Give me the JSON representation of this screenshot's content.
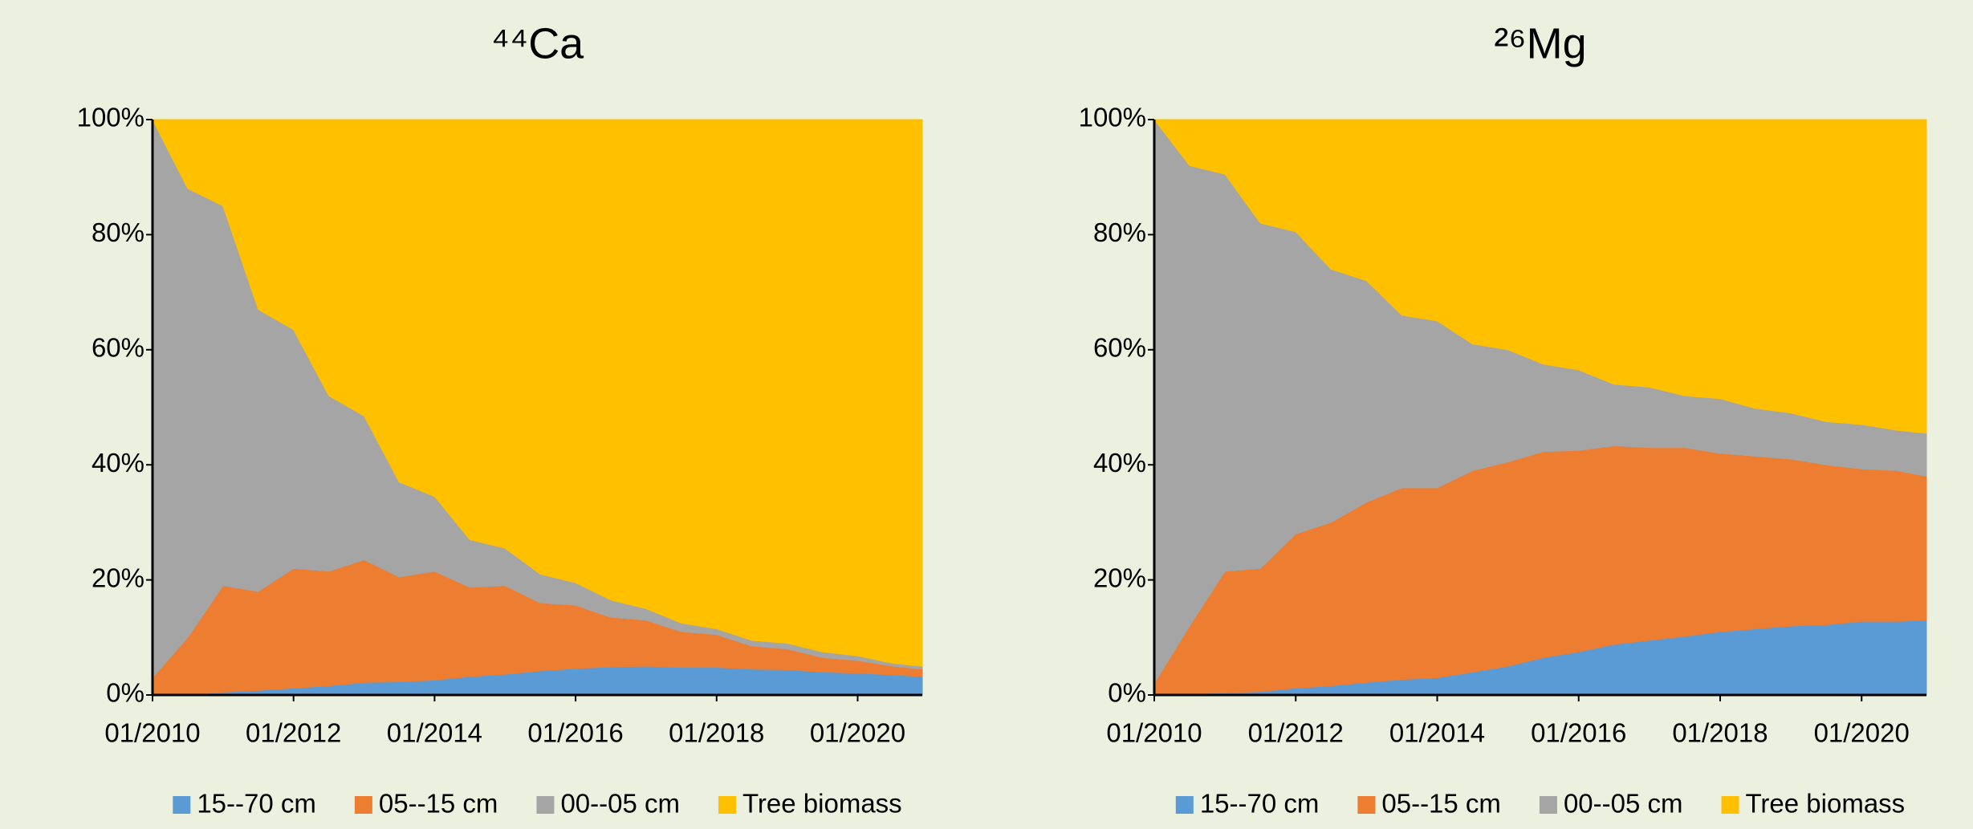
{
  "chart_data": [
    {
      "type": "area",
      "stacked": true,
      "title": "⁴⁴Ca",
      "x": [
        "01/2010",
        "07/2010",
        "01/2011",
        "07/2011",
        "01/2012",
        "07/2012",
        "01/2013",
        "07/2013",
        "01/2014",
        "07/2014",
        "01/2015",
        "07/2015",
        "01/2016",
        "07/2016",
        "01/2017",
        "07/2017",
        "01/2018",
        "07/2018",
        "01/2019",
        "07/2019",
        "01/2020",
        "07/2020",
        "12/2020"
      ],
      "xlim": [
        "01/2010",
        "12/2020"
      ],
      "xticks": [
        "01/2010",
        "01/2012",
        "01/2014",
        "01/2016",
        "01/2018",
        "01/2020"
      ],
      "ylim": [
        0,
        100
      ],
      "yticks": [
        {
          "value": 0,
          "label": "0%"
        },
        {
          "value": 20,
          "label": "20%"
        },
        {
          "value": 40,
          "label": "40%"
        },
        {
          "value": 60,
          "label": "60%"
        },
        {
          "value": 80,
          "label": "80%"
        },
        {
          "value": 100,
          "label": "100%"
        }
      ],
      "legend": "bottom",
      "series": [
        {
          "name": "15--70 cm",
          "color": "#5b9bd5",
          "values": [
            0,
            0,
            0.5,
            0.8,
            1.2,
            1.6,
            2.2,
            2.3,
            2.6,
            3.2,
            3.6,
            4.2,
            4.6,
            4.9,
            5.0,
            4.8,
            4.8,
            4.5,
            4.4,
            4.0,
            3.8,
            3.5,
            3.2
          ]
        },
        {
          "name": "05--15 cm",
          "color": "#ed7d31",
          "values": [
            3,
            10,
            18.5,
            17.2,
            20.8,
            19.9,
            21.3,
            18.2,
            18.9,
            15.5,
            15.4,
            11.8,
            11.0,
            8.6,
            8.0,
            6.2,
            5.7,
            4.0,
            3.6,
            2.5,
            2.2,
            1.5,
            1.3
          ]
        },
        {
          "name": "00--05 cm",
          "color": "#a5a5a5",
          "values": [
            97,
            78,
            66,
            49,
            41.5,
            30.5,
            25,
            16.5,
            13,
            8.3,
            6.5,
            5,
            3.9,
            3,
            2,
            1.5,
            1,
            1,
            1,
            1,
            0.8,
            0.5,
            0.5
          ]
        },
        {
          "name": "Tree biomass",
          "color": "#ffc000",
          "values": [
            0,
            12,
            15,
            33,
            36.5,
            48,
            51.5,
            63,
            65.5,
            73,
            74.5,
            79,
            80.5,
            83.5,
            85,
            87.5,
            88.5,
            90.5,
            91,
            92.5,
            93.2,
            94.5,
            95
          ]
        }
      ]
    },
    {
      "type": "area",
      "stacked": true,
      "title": "²⁶Mg",
      "x": [
        "01/2010",
        "07/2010",
        "01/2011",
        "07/2011",
        "01/2012",
        "07/2012",
        "01/2013",
        "07/2013",
        "01/2014",
        "07/2014",
        "01/2015",
        "07/2015",
        "01/2016",
        "07/2016",
        "01/2017",
        "07/2017",
        "01/2018",
        "07/2018",
        "01/2019",
        "07/2019",
        "01/2020",
        "07/2020",
        "12/2020"
      ],
      "xlim": [
        "01/2010",
        "12/2020"
      ],
      "xticks": [
        "01/2010",
        "01/2012",
        "01/2014",
        "01/2016",
        "01/2018",
        "01/2020"
      ],
      "ylim": [
        0,
        100
      ],
      "yticks": [
        {
          "value": 0,
          "label": "0%"
        },
        {
          "value": 20,
          "label": "20%"
        },
        {
          "value": 40,
          "label": "40%"
        },
        {
          "value": 60,
          "label": "60%"
        },
        {
          "value": 80,
          "label": "80%"
        },
        {
          "value": 100,
          "label": "100%"
        }
      ],
      "legend": "bottom",
      "series": [
        {
          "name": "15--70 cm",
          "color": "#5b9bd5",
          "values": [
            0,
            0.2,
            0.4,
            0.6,
            1.2,
            1.6,
            2.2,
            2.7,
            3,
            4,
            5,
            6.5,
            7.5,
            8.8,
            9.5,
            10.2,
            11,
            11.5,
            12,
            12.2,
            12.8,
            12.8,
            13
          ]
        },
        {
          "name": "05--15 cm",
          "color": "#ed7d31",
          "values": [
            2,
            11.8,
            21.1,
            21.4,
            26.8,
            28.4,
            31.3,
            33.3,
            33,
            35,
            35.5,
            35.8,
            35,
            34.5,
            33.5,
            32.8,
            31,
            30,
            29,
            27.8,
            26.5,
            26.2,
            25
          ]
        },
        {
          "name": "00--05 cm",
          "color": "#a5a5a5",
          "values": [
            98,
            80,
            69,
            60,
            52.5,
            44,
            38.5,
            30,
            29,
            22,
            19.5,
            15.2,
            14,
            10.7,
            10.5,
            9,
            9.5,
            8.3,
            8,
            7.5,
            7.7,
            7,
            7.5
          ]
        },
        {
          "name": "Tree biomass",
          "color": "#ffc000",
          "values": [
            0,
            8,
            9.5,
            18,
            19.5,
            26,
            28,
            34,
            35,
            39,
            40,
            42.5,
            43.5,
            46,
            46.5,
            48,
            48.5,
            50.2,
            51,
            52.5,
            53,
            54,
            54.5
          ]
        }
      ]
    }
  ]
}
